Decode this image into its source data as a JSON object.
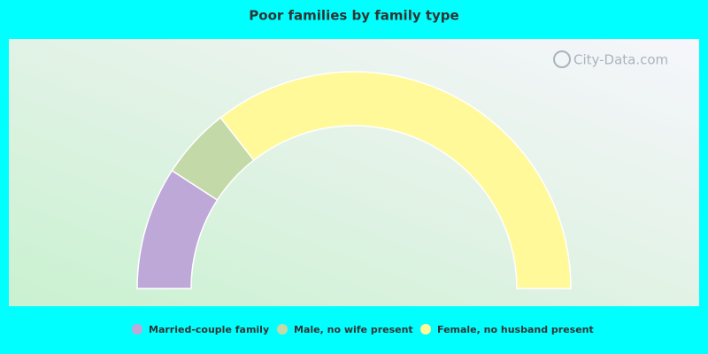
{
  "chart_data": {
    "type": "pie",
    "title": "Poor families by family type",
    "watermark": "City-Data.com",
    "categories": [
      "Married-couple family",
      "Male, no wife present",
      "Female, no husband present"
    ],
    "values": [
      18.3,
      10.6,
      71.1
    ],
    "colors": [
      "#bea8d8",
      "#c4d9a8",
      "#fff99a"
    ]
  }
}
